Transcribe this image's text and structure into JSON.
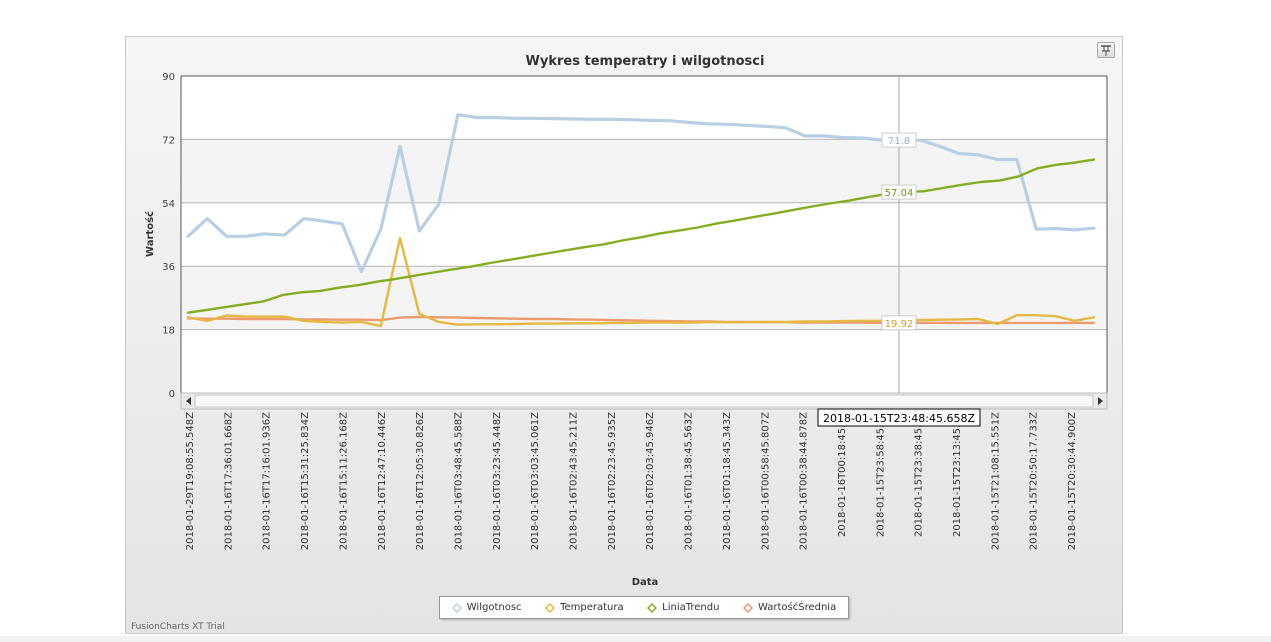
{
  "chart_data": {
    "type": "line",
    "title": "Wykres temperatry i wilgotnosci",
    "xlabel": "Data",
    "ylabel": "Wartość",
    "ylim": [
      0,
      90
    ],
    "y_ticks": [
      "0",
      "18",
      "36",
      "54",
      "72",
      "90"
    ],
    "grid": true,
    "legend_position": "bottom",
    "x_tick_labels": [
      "2018-01-29T19:08:55.548Z",
      "2018-01-16T17:36:01.668Z",
      "2018-01-16T17:16:01.936Z",
      "2018-01-16T15:31:25.834Z",
      "2018-01-16T15:11:26.168Z",
      "2018-01-16T12:47:10.446Z",
      "2018-01-16T12:05:30.826Z",
      "2018-01-16T03:48:45.588Z",
      "2018-01-16T03:23:45.448Z",
      "2018-01-16T03:03:45.061Z",
      "2018-01-16T02:43:45.211Z",
      "2018-01-16T02:23:45.935Z",
      "2018-01-16T02:03:45.946Z",
      "2018-01-16T01:38:45.563Z",
      "2018-01-16T01:18:45.343Z",
      "2018-01-16T00:58:45.807Z",
      "2018-01-16T00:38:44.878Z",
      "2018-01-16T00:18:45.53",
      "2018-01-15T23:58:45.63",
      "2018-01-15T23:38:45.65",
      "2018-01-15T23:13:45.67",
      "2018-01-15T21:08:15.551Z",
      "2018-01-15T20:50:17.733Z",
      "2018-01-15T20:30:44.900Z"
    ],
    "series": [
      {
        "name": "Wilgotnosc",
        "color": "#b8cfe3",
        "values": [
          44.5,
          49.5,
          44.5,
          44.5,
          45.2,
          44.8,
          49.5,
          48.8,
          48,
          34.5,
          46.5,
          70,
          46,
          53.5,
          79,
          78.2,
          78.2,
          78,
          78,
          77.9,
          77.8,
          77.7,
          77.7,
          77.6,
          77.4,
          77.3,
          76.8,
          76.4,
          76.3,
          76,
          75.7,
          75.3,
          73,
          73,
          72.5,
          72.4,
          71.8,
          71.8,
          71.8,
          70,
          68,
          67.6,
          66.3,
          66.3,
          46.5,
          46.7,
          46.3,
          46.8
        ]
      },
      {
        "name": "Temperatura",
        "color": "#e5b844",
        "values": [
          21.5,
          20.5,
          22,
          21.7,
          21.7,
          21.7,
          20.5,
          20.2,
          20,
          20.2,
          19,
          44,
          22.5,
          20.2,
          19.4,
          19.5,
          19.5,
          19.6,
          19.7,
          19.7,
          19.8,
          19.8,
          19.9,
          19.9,
          20,
          20,
          20,
          20.1,
          20.1,
          20.1,
          20.2,
          20.2,
          20.3,
          20.3,
          20.4,
          20.5,
          20.5,
          20.6,
          20.7,
          20.8,
          20.9,
          21,
          19.6,
          22.1,
          22.1,
          21.8,
          20.5,
          21.5
        ]
      },
      {
        "name": "LiniaTrendu",
        "color": "#84ad22",
        "values": [
          22.8,
          23.6,
          24.4,
          25.2,
          26,
          27.8,
          28.6,
          29,
          29.9,
          30.6,
          31.6,
          32.4,
          33.3,
          34.2,
          35.1,
          35.9,
          36.9,
          37.8,
          38.7,
          39.6,
          40.5,
          41.4,
          42.2,
          43.3,
          44.2,
          45.3,
          46.1,
          47,
          48.1,
          49,
          50,
          50.9,
          51.9,
          52.9,
          53.8,
          54.6,
          55.6,
          56.5,
          57.04,
          57.3,
          58.2,
          59.1,
          59.9,
          60.3,
          61.5,
          63.8,
          64.8,
          65.4,
          66.3
        ]
      },
      {
        "name": "WartośćŚrednia",
        "color": "#ee9a6e",
        "values": [
          21.2,
          21.1,
          21.1,
          21,
          21,
          21,
          20.9,
          20.9,
          20.8,
          20.8,
          20.7,
          21.4,
          21.6,
          21.5,
          21.4,
          21.3,
          21.2,
          21.1,
          21,
          21,
          20.9,
          20.8,
          20.7,
          20.6,
          20.5,
          20.4,
          20.3,
          20.3,
          20.2,
          20.2,
          20.1,
          20.1,
          20,
          20,
          20,
          19.95,
          19.92,
          19.92,
          19.92,
          19.92,
          19.9,
          19.9,
          19.9,
          19.9,
          19.9,
          19.9,
          19.9,
          19.9
        ]
      }
    ],
    "value_labels": [
      "71.8",
      "57.04",
      "19.92"
    ],
    "crosshair_tooltip": "2018-01-15T23:48:45.658Z"
  },
  "watermark": "FusionCharts XT Trial",
  "pin_icon": "pin-icon"
}
